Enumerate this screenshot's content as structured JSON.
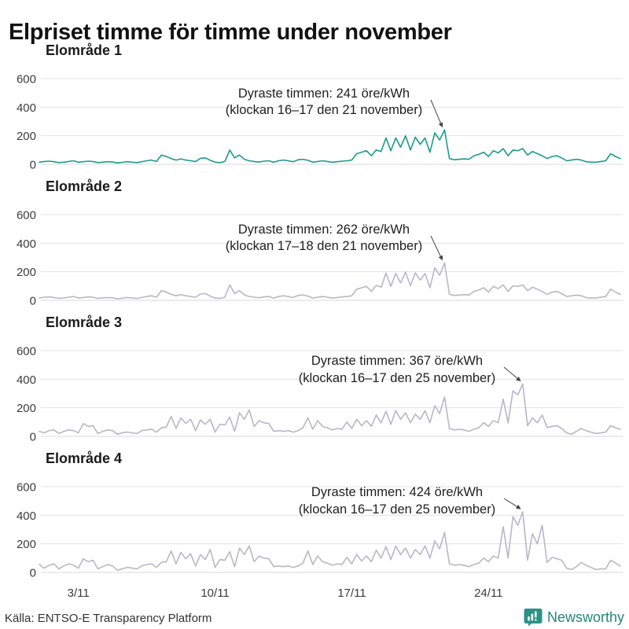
{
  "title": "Elpriset timme för timme under november",
  "source": "Källa: ENTSO-E Transparency Platform",
  "brand": {
    "name": "Newsworthy",
    "color": "#23877c",
    "icon": "bar-chart-speech-bubble"
  },
  "colors": {
    "highlight_line": "#1b9c8b",
    "muted_line": "#b9b7c8",
    "grid": "#e3e3e3",
    "zero_line": "#d9d9d9",
    "tick_text": "#3c3c3c",
    "annotation_text": "#1f1f1f",
    "arrow": "#444444"
  },
  "axis": {
    "y_ticks": [
      600,
      400,
      200,
      0
    ],
    "ylim": [
      0,
      650
    ],
    "x_ticks": [
      {
        "label": "3/11",
        "index": 8
      },
      {
        "label": "10/11",
        "index": 36
      },
      {
        "label": "17/11",
        "index": 64
      },
      {
        "label": "24/11",
        "index": 92
      }
    ],
    "x_unit": "Hourly prices Nov 1–30, sampled every 6 h (00/06/12/18)"
  },
  "chart_data": [
    {
      "type": "line",
      "title": "Elområde 1",
      "ylabel": "öre/kWh",
      "line_color": "#1b9c8b",
      "annotation": {
        "line1": "Dyraste timmen: 241 öre/kWh",
        "line2": "(klockan 16–17 den 21 november)",
        "peak_index": 83,
        "peak_value": 241
      },
      "values": [
        15,
        20,
        22,
        18,
        12,
        15,
        20,
        25,
        15,
        18,
        22,
        20,
        12,
        15,
        18,
        16,
        10,
        14,
        18,
        15,
        12,
        18,
        25,
        30,
        20,
        65,
        55,
        40,
        30,
        38,
        30,
        25,
        20,
        42,
        45,
        28,
        15,
        12,
        20,
        100,
        45,
        65,
        35,
        25,
        20,
        16,
        22,
        25,
        15,
        25,
        30,
        25,
        18,
        32,
        35,
        28,
        15,
        20,
        25,
        20,
        15,
        18,
        22,
        25,
        30,
        75,
        85,
        95,
        60,
        100,
        90,
        185,
        95,
        185,
        120,
        200,
        100,
        190,
        140,
        185,
        85,
        220,
        170,
        241,
        40,
        32,
        35,
        38,
        35,
        60,
        70,
        85,
        55,
        95,
        80,
        110,
        60,
        100,
        95,
        110,
        65,
        90,
        75,
        60,
        40,
        55,
        60,
        45,
        25,
        30,
        35,
        30,
        18,
        15,
        15,
        20,
        25,
        75,
        55,
        40
      ]
    },
    {
      "type": "line",
      "title": "Elområde 2",
      "ylabel": "öre/kWh",
      "line_color": "#b9b7c8",
      "annotation": {
        "line1": "Dyraste timmen: 262 öre/kWh",
        "line2": "(klockan 17–18 den 21 november)",
        "peak_index": 83,
        "peak_value": 262
      },
      "values": [
        17,
        22,
        24,
        20,
        14,
        17,
        22,
        27,
        17,
        20,
        24,
        22,
        13,
        17,
        20,
        18,
        11,
        15,
        20,
        17,
        13,
        20,
        27,
        32,
        22,
        68,
        58,
        42,
        32,
        40,
        32,
        27,
        22,
        44,
        48,
        30,
        16,
        13,
        22,
        108,
        48,
        68,
        38,
        27,
        22,
        18,
        24,
        27,
        16,
        27,
        32,
        27,
        20,
        34,
        38,
        30,
        16,
        22,
        27,
        22,
        16,
        20,
        24,
        27,
        32,
        78,
        88,
        98,
        62,
        105,
        92,
        190,
        98,
        188,
        122,
        198,
        102,
        192,
        142,
        188,
        88,
        228,
        175,
        262,
        42,
        34,
        37,
        40,
        37,
        62,
        72,
        88,
        58,
        98,
        82,
        108,
        62,
        102,
        98,
        108,
        68,
        92,
        78,
        62,
        42,
        57,
        62,
        47,
        27,
        32,
        37,
        32,
        20,
        16,
        16,
        22,
        27,
        78,
        58,
        42
      ]
    },
    {
      "type": "line",
      "title": "Elområde 3",
      "ylabel": "öre/kWh",
      "line_color": "#b9b7c8",
      "annotation": {
        "line1": "Dyraste timmen: 367 öre/kWh",
        "line2": "(klockan 16–17 den 25 november)",
        "peak_index": 99,
        "peak_value": 367
      },
      "values": [
        35,
        25,
        40,
        45,
        20,
        35,
        45,
        40,
        25,
        90,
        70,
        75,
        20,
        35,
        45,
        40,
        15,
        25,
        30,
        25,
        20,
        40,
        45,
        50,
        30,
        60,
        65,
        140,
        55,
        130,
        90,
        120,
        40,
        115,
        85,
        120,
        30,
        85,
        80,
        135,
        35,
        165,
        120,
        185,
        70,
        110,
        95,
        90,
        35,
        40,
        35,
        40,
        30,
        40,
        60,
        130,
        50,
        110,
        70,
        60,
        45,
        55,
        50,
        100,
        55,
        120,
        75,
        110,
        70,
        150,
        95,
        175,
        85,
        180,
        120,
        165,
        95,
        155,
        120,
        180,
        95,
        215,
        160,
        275,
        55,
        45,
        50,
        45,
        35,
        50,
        60,
        95,
        70,
        110,
        95,
        260,
        95,
        319,
        290,
        367,
        75,
        130,
        95,
        150,
        62,
        70,
        75,
        55,
        25,
        15,
        35,
        55,
        40,
        30,
        20,
        25,
        30,
        75,
        60,
        50
      ]
    },
    {
      "type": "line",
      "title": "Elområde 4",
      "ylabel": "öre/kWh",
      "line_color": "#b9b7c8",
      "annotation": {
        "line1": "Dyraste timmen: 424 öre/kWh",
        "line2": "(klockan 16–17 den 25 november)",
        "peak_index": 99,
        "peak_value": 424
      },
      "values": [
        55,
        30,
        50,
        60,
        25,
        45,
        60,
        50,
        30,
        95,
        75,
        85,
        25,
        40,
        55,
        45,
        15,
        25,
        35,
        30,
        25,
        45,
        55,
        60,
        35,
        70,
        75,
        150,
        60,
        140,
        95,
        130,
        45,
        125,
        90,
        160,
        35,
        90,
        85,
        145,
        40,
        170,
        125,
        185,
        75,
        115,
        100,
        95,
        40,
        45,
        40,
        45,
        35,
        45,
        65,
        150,
        55,
        115,
        75,
        65,
        50,
        60,
        55,
        105,
        60,
        125,
        80,
        115,
        75,
        155,
        100,
        180,
        90,
        185,
        125,
        170,
        100,
        160,
        125,
        185,
        100,
        220,
        165,
        280,
        60,
        50,
        55,
        50,
        40,
        55,
        65,
        100,
        75,
        115,
        100,
        320,
        100,
        390,
        330,
        424,
        85,
        270,
        200,
        330,
        70,
        105,
        95,
        85,
        30,
        20,
        40,
        70,
        50,
        35,
        20,
        25,
        25,
        85,
        65,
        45
      ]
    }
  ]
}
